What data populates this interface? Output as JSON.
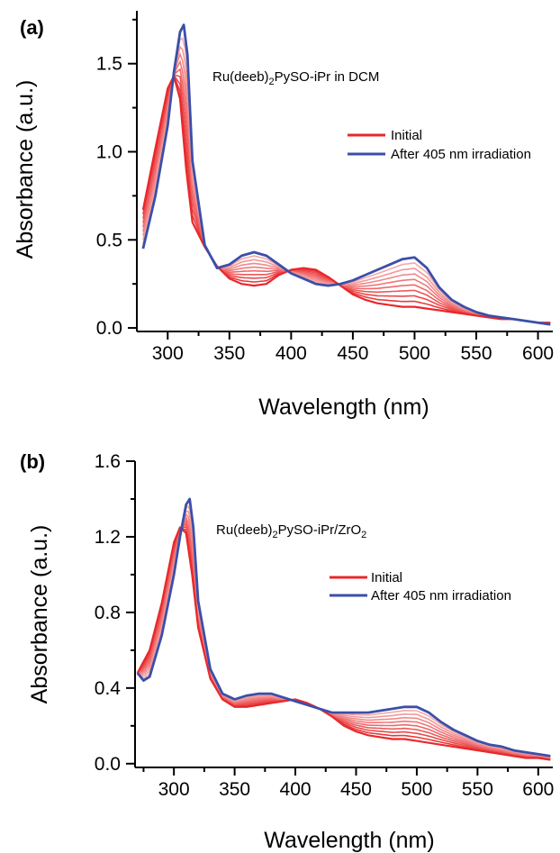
{
  "chart_data": [
    {
      "type": "line",
      "panel_label": "(a)",
      "annotation": {
        "main": "Ru(deeb)",
        "sub": "2",
        "rest": "PySO-iPr in DCM"
      },
      "xlabel": "Wavelength (nm)",
      "ylabel": "Absorbance (a.u.)",
      "xlim": [
        275,
        612
      ],
      "ylim": [
        -0.02,
        1.8
      ],
      "xticks": [
        300,
        350,
        400,
        450,
        500,
        550,
        600
      ],
      "yticks": [
        0.0,
        0.5,
        1.0,
        1.5
      ],
      "ytick_labels": [
        "0.0",
        "0.5",
        "1.0",
        "1.5"
      ],
      "legend_position": "right",
      "legend": [
        {
          "label": "Initial",
          "color": "#e8282b"
        },
        {
          "label": "After 405 nm irradiation",
          "color": "#3b4fa8"
        }
      ],
      "n_intermediate_traces": 8,
      "series": [
        {
          "name": "Initial",
          "color": "#e8282b",
          "x": [
            280,
            290,
            300,
            305,
            310,
            315,
            320,
            330,
            340,
            350,
            360,
            370,
            380,
            390,
            400,
            410,
            420,
            430,
            440,
            450,
            460,
            470,
            480,
            490,
            500,
            510,
            520,
            530,
            540,
            550,
            560,
            570,
            580,
            590,
            600,
            610
          ],
          "y": [
            0.67,
            1.02,
            1.36,
            1.43,
            1.3,
            0.9,
            0.6,
            0.46,
            0.35,
            0.28,
            0.25,
            0.24,
            0.25,
            0.3,
            0.33,
            0.34,
            0.33,
            0.29,
            0.24,
            0.19,
            0.16,
            0.14,
            0.13,
            0.12,
            0.12,
            0.11,
            0.1,
            0.09,
            0.08,
            0.07,
            0.06,
            0.05,
            0.05,
            0.04,
            0.03,
            0.03
          ]
        },
        {
          "name": "After 405 nm irradiation",
          "color": "#3b4fa8",
          "x": [
            280,
            290,
            300,
            305,
            310,
            313,
            316,
            320,
            330,
            340,
            350,
            360,
            370,
            380,
            390,
            400,
            410,
            420,
            430,
            440,
            450,
            460,
            470,
            480,
            490,
            500,
            510,
            520,
            530,
            540,
            550,
            560,
            570,
            580,
            590,
            600,
            610
          ],
          "y": [
            0.45,
            0.75,
            1.15,
            1.45,
            1.68,
            1.72,
            1.55,
            0.95,
            0.47,
            0.34,
            0.36,
            0.41,
            0.43,
            0.41,
            0.36,
            0.31,
            0.28,
            0.25,
            0.24,
            0.25,
            0.27,
            0.3,
            0.33,
            0.36,
            0.39,
            0.4,
            0.34,
            0.23,
            0.16,
            0.12,
            0.09,
            0.07,
            0.06,
            0.05,
            0.04,
            0.03,
            0.02
          ]
        }
      ]
    },
    {
      "type": "line",
      "panel_label": "(b)",
      "annotation": {
        "main": "Ru(deeb)",
        "sub": "2",
        "rest": "PySO-iPr/ZrO",
        "sub2": "2"
      },
      "xlabel": "Wavelength (nm)",
      "ylabel": "Absorbance (a.u.)",
      "xlim": [
        268,
        612
      ],
      "ylim": [
        -0.02,
        1.6
      ],
      "xticks": [
        300,
        350,
        400,
        450,
        500,
        550,
        600
      ],
      "yticks": [
        0.0,
        0.4,
        0.8,
        1.2,
        1.6
      ],
      "ytick_labels": [
        "0.0",
        "0.4",
        "0.8",
        "1.2",
        "1.6"
      ],
      "legend_position": "right",
      "legend": [
        {
          "label": "Initial",
          "color": "#e8282b"
        },
        {
          "label": "After 405 nm irradiation",
          "color": "#3b4fa8"
        }
      ],
      "n_intermediate_traces": 8,
      "series": [
        {
          "name": "Initial",
          "color": "#e8282b",
          "x": [
            270,
            280,
            290,
            300,
            305,
            310,
            315,
            320,
            330,
            340,
            350,
            360,
            370,
            380,
            390,
            400,
            410,
            420,
            430,
            440,
            450,
            460,
            470,
            480,
            490,
            500,
            510,
            520,
            530,
            540,
            550,
            560,
            570,
            580,
            590,
            600,
            610
          ],
          "y": [
            0.48,
            0.6,
            0.85,
            1.17,
            1.25,
            1.22,
            1.0,
            0.72,
            0.45,
            0.34,
            0.3,
            0.3,
            0.31,
            0.32,
            0.33,
            0.34,
            0.32,
            0.29,
            0.25,
            0.2,
            0.17,
            0.15,
            0.14,
            0.13,
            0.13,
            0.12,
            0.11,
            0.1,
            0.09,
            0.08,
            0.07,
            0.06,
            0.05,
            0.04,
            0.03,
            0.03,
            0.02
          ]
        },
        {
          "name": "After 405 nm irradiation",
          "color": "#3b4fa8",
          "x": [
            270,
            275,
            280,
            290,
            300,
            305,
            310,
            313,
            316,
            320,
            330,
            340,
            350,
            360,
            370,
            380,
            390,
            400,
            410,
            420,
            430,
            440,
            450,
            460,
            470,
            480,
            490,
            500,
            510,
            520,
            530,
            540,
            550,
            560,
            570,
            580,
            590,
            600,
            610
          ],
          "y": [
            0.48,
            0.44,
            0.46,
            0.68,
            1.0,
            1.2,
            1.37,
            1.4,
            1.25,
            0.86,
            0.5,
            0.37,
            0.34,
            0.36,
            0.37,
            0.37,
            0.35,
            0.33,
            0.31,
            0.29,
            0.27,
            0.27,
            0.27,
            0.27,
            0.28,
            0.29,
            0.3,
            0.3,
            0.27,
            0.22,
            0.18,
            0.15,
            0.12,
            0.1,
            0.09,
            0.07,
            0.06,
            0.05,
            0.04
          ]
        }
      ]
    }
  ]
}
